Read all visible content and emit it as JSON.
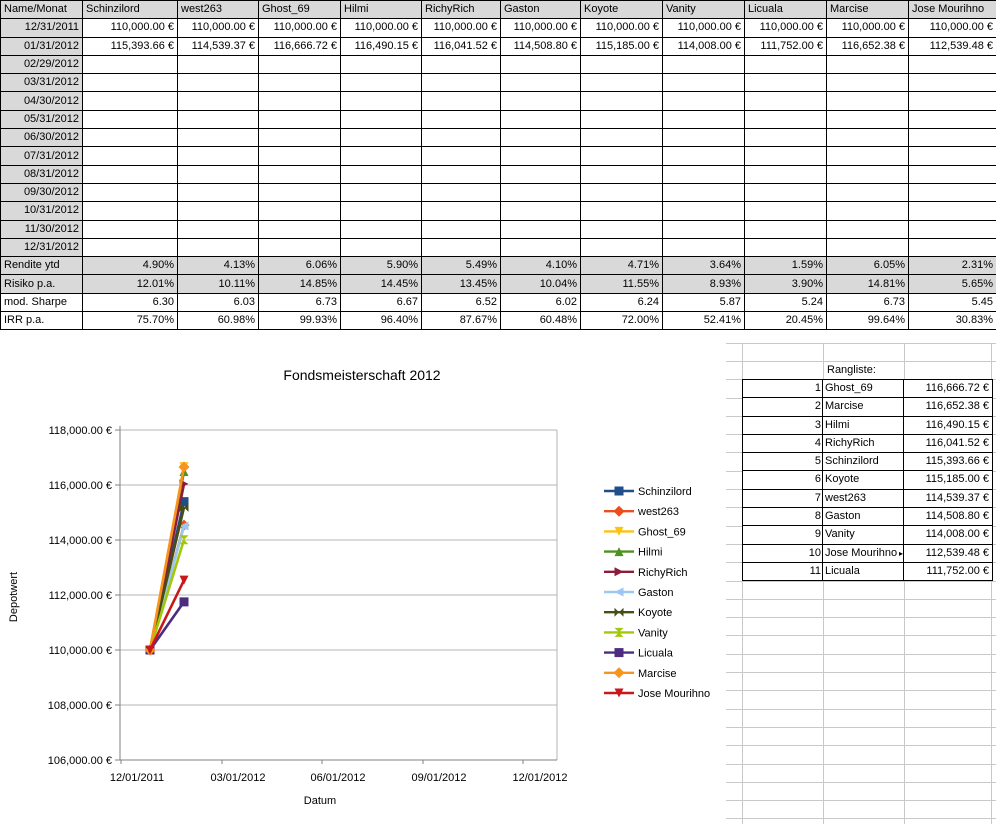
{
  "table": {
    "corner_label": "Name/Monat",
    "funds": [
      "Schinzilord",
      "west263",
      "Ghost_69",
      "Hilmi",
      "RichyRich",
      "Gaston",
      "Koyote",
      "Vanity",
      "Licuala",
      "Marcise",
      "Jose Mourihno"
    ],
    "month_rows": [
      {
        "date": "12/31/2011",
        "values": [
          "110,000.00 €",
          "110,000.00 €",
          "110,000.00 €",
          "110,000.00 €",
          "110,000.00 €",
          "110,000.00 €",
          "110,000.00 €",
          "110,000.00 €",
          "110,000.00 €",
          "110,000.00 €",
          "110,000.00 €"
        ]
      },
      {
        "date": "01/31/2012",
        "values": [
          "115,393.66 €",
          "114,539.37 €",
          "116,666.72 €",
          "116,490.15 €",
          "116,041.52 €",
          "114,508.80 €",
          "115,185.00 €",
          "114,008.00 €",
          "111,752.00 €",
          "116,652.38 €",
          "112,539.48 €"
        ]
      },
      {
        "date": "02/29/2012",
        "values": []
      },
      {
        "date": "03/31/2012",
        "values": []
      },
      {
        "date": "04/30/2012",
        "values": []
      },
      {
        "date": "05/31/2012",
        "values": []
      },
      {
        "date": "06/30/2012",
        "values": []
      },
      {
        "date": "07/31/2012",
        "values": []
      },
      {
        "date": "08/31/2012",
        "values": []
      },
      {
        "date": "09/30/2012",
        "values": []
      },
      {
        "date": "10/31/2012",
        "values": []
      },
      {
        "date": "11/30/2012",
        "values": []
      },
      {
        "date": "12/31/2012",
        "values": []
      }
    ],
    "stat_rows": [
      {
        "label": "Rendite ytd",
        "shaded": true,
        "values": [
          "4.90%",
          "4.13%",
          "6.06%",
          "5.90%",
          "5.49%",
          "4.10%",
          "4.71%",
          "3.64%",
          "1.59%",
          "6.05%",
          "2.31%"
        ]
      },
      {
        "label": "Risiko p.a.",
        "shaded": true,
        "values": [
          "12.01%",
          "10.11%",
          "14.85%",
          "14.45%",
          "13.45%",
          "10.04%",
          "11.55%",
          "8.93%",
          "3.90%",
          "14.81%",
          "5.65%"
        ]
      },
      {
        "label": "mod. Sharpe",
        "shaded": false,
        "values": [
          "6.30",
          "6.03",
          "6.73",
          "6.67",
          "6.52",
          "6.02",
          "6.24",
          "5.87",
          "5.24",
          "6.73",
          "5.45"
        ]
      },
      {
        "label": "IRR p.a.",
        "shaded": false,
        "values": [
          "75.70%",
          "60.98%",
          "99.93%",
          "96.40%",
          "87.67%",
          "60.48%",
          "72.00%",
          "52.41%",
          "20.45%",
          "99.64%",
          "30.83%"
        ]
      }
    ]
  },
  "rangliste": {
    "title": "Rangliste:",
    "rows": [
      {
        "rank": "1",
        "name": "Ghost_69",
        "value": "116,666.72 €",
        "overflow": false
      },
      {
        "rank": "2",
        "name": "Marcise",
        "value": "116,652.38 €",
        "overflow": false
      },
      {
        "rank": "3",
        "name": "Hilmi",
        "value": "116,490.15 €",
        "overflow": false
      },
      {
        "rank": "4",
        "name": "RichyRich",
        "value": "116,041.52 €",
        "overflow": false
      },
      {
        "rank": "5",
        "name": "Schinzilord",
        "value": "115,393.66 €",
        "overflow": false
      },
      {
        "rank": "6",
        "name": "Koyote",
        "value": "115,185.00 €",
        "overflow": false
      },
      {
        "rank": "7",
        "name": "west263",
        "value": "114,539.37 €",
        "overflow": false
      },
      {
        "rank": "8",
        "name": "Gaston",
        "value": "114,508.80 €",
        "overflow": false
      },
      {
        "rank": "9",
        "name": "Vanity",
        "value": "114,008.00 €",
        "overflow": false
      },
      {
        "rank": "10",
        "name": "Jose Mourihno",
        "value": "112,539.48 €",
        "overflow": true
      },
      {
        "rank": "11",
        "name": "Licuala",
        "value": "111,752.00 €",
        "overflow": false
      }
    ]
  },
  "chart_data": {
    "type": "line",
    "title": "Fondsmeisterschaft 2012",
    "xlabel": "Datum",
    "ylabel": "Depotwert",
    "x_points": [
      "12/31/2011",
      "01/31/2012"
    ],
    "x_tick_labels": [
      "12/01/2011",
      "03/01/2012",
      "06/01/2012",
      "09/01/2012",
      "12/01/2012"
    ],
    "y_tick_labels": [
      "118,000.00 €",
      "116,000.00 €",
      "114,000.00 €",
      "112,000.00 €",
      "110,000.00 €",
      "108,000.00 €",
      "106,000.00 €"
    ],
    "ylim": [
      106000,
      118000
    ],
    "y_step": 2000,
    "grid": true,
    "legend_position": "right",
    "series": [
      {
        "name": "Schinzilord",
        "color": "#1F4E88",
        "marker": "square",
        "values": [
          110000,
          115393.66
        ]
      },
      {
        "name": "west263",
        "color": "#ED4D1D",
        "marker": "diamond",
        "values": [
          110000,
          114539.37
        ]
      },
      {
        "name": "Ghost_69",
        "color": "#FEC211",
        "marker": "tri-down",
        "values": [
          110000,
          116666.72
        ]
      },
      {
        "name": "Hilmi",
        "color": "#4E9121",
        "marker": "tri-up",
        "values": [
          110000,
          116490.15
        ]
      },
      {
        "name": "RichyRich",
        "color": "#8C1C3A",
        "marker": "tri-right",
        "values": [
          110000,
          116041.52
        ]
      },
      {
        "name": "Gaston",
        "color": "#9CC7F0",
        "marker": "tri-left",
        "values": [
          110000,
          114508.8
        ]
      },
      {
        "name": "Koyote",
        "color": "#454F14",
        "marker": "bowtie-h",
        "values": [
          110000,
          115185.0
        ]
      },
      {
        "name": "Vanity",
        "color": "#A3C807",
        "marker": "bowtie-v",
        "values": [
          110000,
          114008.0
        ]
      },
      {
        "name": "Licuala",
        "color": "#4D2B7E",
        "marker": "square",
        "values": [
          110000,
          111752.0
        ]
      },
      {
        "name": "Marcise",
        "color": "#F7941E",
        "marker": "diamond",
        "values": [
          110000,
          116652.38
        ]
      },
      {
        "name": "Jose Mourihno",
        "color": "#C9181B",
        "marker": "tri-down",
        "values": [
          110000,
          112539.48
        ]
      }
    ]
  }
}
